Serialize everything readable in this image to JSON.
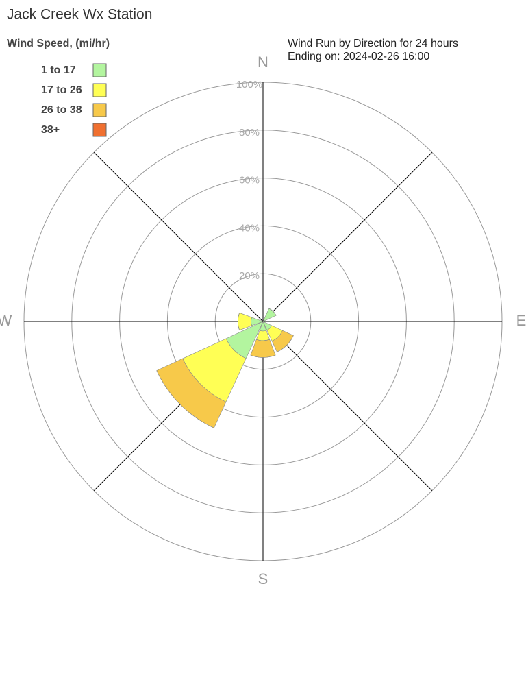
{
  "chart_data": {
    "type": "windrose",
    "title": "Jack Creek Wx Station",
    "subtitle": [
      "Wind Run by Direction for 24 hours",
      "Ending on: 2024-02-26 16:00"
    ],
    "legend_title": "Wind Speed, (mi/hr)",
    "categories": [
      "N",
      null,
      "E",
      null,
      "S",
      null,
      "W",
      null
    ],
    "series": [
      {
        "name": "1 to 17",
        "color": "#b3f59f",
        "values": [
          0,
          6,
          0,
          4,
          4,
          17,
          5,
          0
        ]
      },
      {
        "name": "17 to 26",
        "color": "#ffff55",
        "values": [
          0,
          0,
          0,
          5,
          4,
          20,
          5.5,
          0
        ]
      },
      {
        "name": "26 to 38",
        "color": "#f7c94a",
        "values": [
          0,
          0,
          0,
          5,
          7,
          12,
          0,
          0
        ]
      },
      {
        "name": "38+",
        "color": "#f07030",
        "values": [
          0,
          0,
          0,
          0,
          0,
          0,
          0,
          0
        ]
      }
    ],
    "rlim": [
      0,
      100
    ],
    "rticks": [
      {
        "value": 20,
        "label": "20%"
      },
      {
        "value": 40,
        "label": "40%"
      },
      {
        "value": 60,
        "label": "60%"
      },
      {
        "value": 80,
        "label": "80%"
      },
      {
        "value": 100,
        "label": "100%"
      }
    ],
    "stacked": true,
    "legend": "top-left"
  }
}
